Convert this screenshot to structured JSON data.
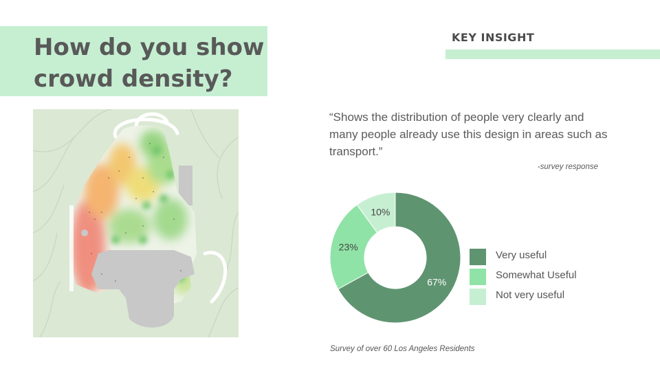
{
  "slide": {
    "title": "How do you show crowd density?",
    "key_insight_label": "KEY INSIGHT",
    "quote": "“Shows the distribution of people very clearly and many people already use this design in areas such as transport.”",
    "quote_attribution": "-survey response",
    "footnote": "Survey of over 60 Los Angeles Residents",
    "colors": {
      "accent_green": "#c6efd2",
      "title_text": "#595959",
      "very_useful": "#5f9470",
      "somewhat_useful": "#8fe3a6",
      "not_very_useful": "#c6efd2"
    },
    "map_image": "crowd-density-heatmap"
  },
  "chart_data": {
    "type": "pie",
    "style": "donut",
    "categories": [
      "Very useful",
      "Somewhat Useful",
      "Not very useful"
    ],
    "values": [
      67,
      23,
      10
    ],
    "data_labels": [
      "67%",
      "23%",
      "10%"
    ],
    "legend_placement": "right",
    "legend": [
      "Very useful",
      "Somewhat Useful",
      "Not very useful"
    ]
  }
}
